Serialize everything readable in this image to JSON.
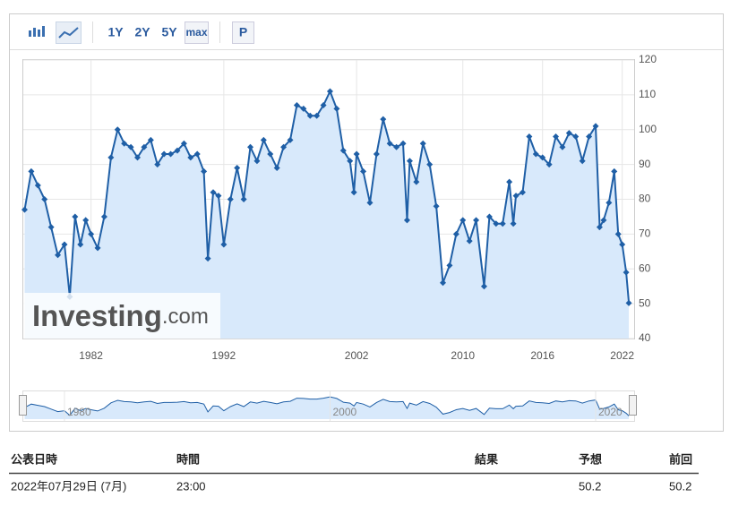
{
  "toolbar": {
    "ranges": [
      "1Y",
      "2Y",
      "5Y",
      "max"
    ],
    "extra": "P"
  },
  "watermark": [
    "Investing",
    ".com"
  ],
  "chart_data": {
    "type": "line",
    "x": [
      1977.0,
      1977.5,
      1978.0,
      1978.5,
      1979.0,
      1979.5,
      1980.0,
      1980.4,
      1980.8,
      1981.2,
      1981.6,
      1982.0,
      1982.5,
      1983.0,
      1983.5,
      1984.0,
      1984.5,
      1985.0,
      1985.5,
      1986.0,
      1986.5,
      1987.0,
      1987.5,
      1988.0,
      1988.5,
      1989.0,
      1989.5,
      1990.0,
      1990.5,
      1990.8,
      1991.2,
      1991.6,
      1992.0,
      1992.5,
      1993.0,
      1993.5,
      1994.0,
      1994.5,
      1995.0,
      1995.5,
      1996.0,
      1996.5,
      1997.0,
      1997.5,
      1998.0,
      1998.5,
      1999.0,
      1999.5,
      2000.0,
      2000.5,
      2001.0,
      2001.5,
      2001.8,
      2002.0,
      2002.5,
      2003.0,
      2003.5,
      2004.0,
      2004.5,
      2005.0,
      2005.5,
      2005.8,
      2006.0,
      2006.5,
      2007.0,
      2007.5,
      2008.0,
      2008.5,
      2009.0,
      2009.5,
      2010.0,
      2010.5,
      2011.0,
      2011.6,
      2012.0,
      2012.5,
      2013.0,
      2013.5,
      2013.8,
      2014.0,
      2014.5,
      2015.0,
      2015.5,
      2016.0,
      2016.5,
      2017.0,
      2017.5,
      2018.0,
      2018.5,
      2019.0,
      2019.5,
      2020.0,
      2020.3,
      2020.6,
      2021.0,
      2021.4,
      2021.7,
      2022.0,
      2022.3,
      2022.5
    ],
    "series": [
      {
        "color": "#1f5fa6",
        "values": [
          77,
          88,
          84,
          80,
          72,
          64,
          67,
          52,
          75,
          67,
          74,
          70,
          66,
          75,
          92,
          100,
          96,
          95,
          92,
          95,
          97,
          90,
          93,
          93,
          94,
          96,
          92,
          93,
          88,
          63,
          82,
          81,
          67,
          80,
          89,
          80,
          95,
          91,
          97,
          93,
          89,
          95,
          97,
          107,
          106,
          104,
          104,
          107,
          111,
          106,
          94,
          91,
          82,
          93,
          88,
          79,
          93,
          103,
          96,
          95,
          96,
          74,
          91,
          85,
          96,
          90,
          78,
          56,
          61,
          70,
          74,
          68,
          74,
          55,
          75,
          73,
          73,
          85,
          73,
          81,
          82,
          98,
          93,
          92,
          90,
          98,
          95,
          99,
          98,
          91,
          98,
          101,
          72,
          74,
          79,
          88,
          70,
          67,
          59,
          50.2
        ]
      }
    ],
    "xlim": [
      1976.9,
      2022.9
    ],
    "xticks": [
      1982,
      1992,
      2002,
      2010,
      2016,
      2022
    ],
    "ylim": [
      40,
      120
    ],
    "yticks": [
      40,
      50,
      60,
      70,
      80,
      90,
      100,
      110,
      120
    ],
    "grid": true
  },
  "navigator": {
    "xticks": [
      1980,
      2000,
      2020
    ]
  },
  "table": {
    "headers": [
      "公表日時",
      "時間",
      "結果",
      "予想",
      "前回"
    ],
    "row": {
      "date": "2022年07月29日 (7月)",
      "time": "23:00",
      "forecast": "50.2",
      "previous": "50.2"
    }
  }
}
